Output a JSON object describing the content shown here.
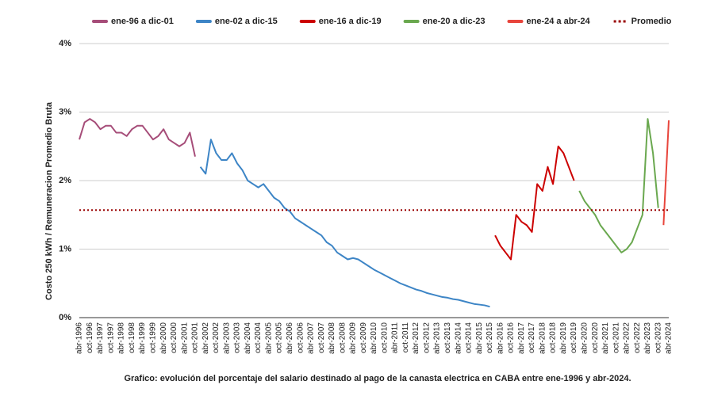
{
  "chart_data": {
    "type": "line",
    "y_label": "Costo 250 kWh / Remuneracion Promedio Bruta",
    "caption": "Grafico: evolución del porcentaje del salario destinado al pago de la canasta electrica en CABA entre ene-1996 y abr-2024.",
    "ylim": [
      0,
      4
    ],
    "yticks": [
      {
        "value": 0,
        "label": "0%"
      },
      {
        "value": 1,
        "label": "1%"
      },
      {
        "value": 2,
        "label": "2%"
      },
      {
        "value": 3,
        "label": "3%"
      },
      {
        "value": 4,
        "label": "4%"
      }
    ],
    "grid": true,
    "legend": "top",
    "categories": [
      "abr-1996",
      null,
      "oct-1996",
      null,
      "abr-1997",
      null,
      "oct-1997",
      null,
      "abr-1998",
      null,
      "oct-1998",
      null,
      "abr-1999",
      null,
      "oct-1999",
      null,
      "abr-2000",
      null,
      "oct-2000",
      null,
      "abr-2001",
      null,
      "oct-2001",
      null,
      "abr-2002",
      null,
      "oct-2002",
      null,
      "abr-2003",
      null,
      "oct-2003",
      null,
      "abr-2004",
      null,
      "oct-2004",
      null,
      "abr-2005",
      null,
      "oct-2005",
      null,
      "abr-2006",
      null,
      "oct-2006",
      null,
      "abr-2007",
      null,
      "oct-2007",
      null,
      "abr-2008",
      null,
      "oct-2008",
      null,
      "abr-2009",
      null,
      "oct-2009",
      null,
      "abr-2010",
      null,
      "oct-2010",
      null,
      "abr-2011",
      null,
      "oct-2011",
      null,
      "abr-2012",
      null,
      "oct-2012",
      null,
      "abr-2013",
      null,
      "oct-2013",
      null,
      "abr-2014",
      null,
      "oct-2014",
      null,
      "abr-2015",
      null,
      "oct-2015",
      null,
      "abr-2016",
      null,
      "oct-2016",
      null,
      "abr-2017",
      null,
      "oct-2017",
      null,
      "abr-2018",
      null,
      "oct-2018",
      null,
      "abr-2019",
      null,
      "oct-2019",
      null,
      "abr-2020",
      null,
      "oct-2020",
      null,
      "abr-2021",
      null,
      "oct-2021",
      null,
      "abr-2022",
      null,
      "oct-2022",
      null,
      "abr-2023",
      null,
      "oct-2023",
      null,
      "abr-2024"
    ],
    "series": [
      {
        "name": "ene-96 a dic-01",
        "color": "#a64d79",
        "values": [
          2.6,
          2.85,
          2.9,
          2.85,
          2.75,
          2.8,
          2.8,
          2.7,
          2.7,
          2.65,
          2.75,
          2.8,
          2.8,
          2.7,
          2.6,
          2.65,
          2.75,
          2.6,
          2.55,
          2.5,
          2.55,
          2.7,
          2.35,
          null,
          null,
          null,
          null,
          null,
          null,
          null,
          null,
          null,
          null,
          null,
          null,
          null,
          null,
          null,
          null,
          null,
          null,
          null,
          null,
          null,
          null,
          null,
          null,
          null,
          null,
          null,
          null,
          null,
          null,
          null,
          null,
          null,
          null,
          null,
          null,
          null,
          null,
          null,
          null,
          null,
          null,
          null,
          null,
          null,
          null,
          null,
          null,
          null,
          null,
          null,
          null,
          null,
          null,
          null,
          null,
          null,
          null,
          null,
          null,
          null,
          null,
          null,
          null,
          null,
          null,
          null,
          null,
          null,
          null,
          null,
          null,
          null,
          null,
          null,
          null,
          null,
          null,
          null,
          null,
          null,
          null,
          null,
          null,
          null,
          null,
          null,
          null,
          null,
          null
        ]
      },
      {
        "name": "ene-02 a dic-15",
        "color": "#3d85c6",
        "values": [
          null,
          null,
          null,
          null,
          null,
          null,
          null,
          null,
          null,
          null,
          null,
          null,
          null,
          null,
          null,
          null,
          null,
          null,
          null,
          null,
          null,
          null,
          null,
          2.2,
          2.1,
          2.6,
          2.4,
          2.3,
          2.3,
          2.4,
          2.25,
          2.15,
          2.0,
          1.95,
          1.9,
          1.95,
          1.85,
          1.75,
          1.7,
          1.6,
          1.55,
          1.45,
          1.4,
          1.35,
          1.3,
          1.25,
          1.2,
          1.1,
          1.05,
          0.95,
          0.9,
          0.85,
          0.87,
          0.85,
          0.8,
          0.75,
          0.7,
          0.66,
          0.62,
          0.58,
          0.54,
          0.5,
          0.47,
          0.44,
          0.41,
          0.39,
          0.36,
          0.34,
          0.32,
          0.3,
          0.29,
          0.27,
          0.26,
          0.24,
          0.22,
          0.2,
          0.19,
          0.18,
          0.16,
          null,
          null,
          null,
          null,
          null,
          null,
          null,
          null,
          null,
          null,
          null,
          null,
          null,
          null,
          null,
          null,
          null,
          null,
          null,
          null,
          null,
          null,
          null,
          null,
          null,
          null,
          null,
          null,
          null,
          null,
          null,
          null,
          null,
          null
        ]
      },
      {
        "name": "ene-16 a dic-19",
        "color": "#cc0000",
        "values": [
          null,
          null,
          null,
          null,
          null,
          null,
          null,
          null,
          null,
          null,
          null,
          null,
          null,
          null,
          null,
          null,
          null,
          null,
          null,
          null,
          null,
          null,
          null,
          null,
          null,
          null,
          null,
          null,
          null,
          null,
          null,
          null,
          null,
          null,
          null,
          null,
          null,
          null,
          null,
          null,
          null,
          null,
          null,
          null,
          null,
          null,
          null,
          null,
          null,
          null,
          null,
          null,
          null,
          null,
          null,
          null,
          null,
          null,
          null,
          null,
          null,
          null,
          null,
          null,
          null,
          null,
          null,
          null,
          null,
          null,
          null,
          null,
          null,
          null,
          null,
          null,
          null,
          null,
          null,
          1.2,
          1.05,
          0.95,
          0.85,
          1.5,
          1.4,
          1.35,
          1.25,
          1.95,
          1.85,
          2.2,
          1.95,
          2.5,
          2.4,
          2.2,
          2.0,
          null,
          null,
          null,
          null,
          null,
          null,
          null,
          null,
          null,
          null,
          null,
          null,
          null,
          null,
          null,
          null,
          null,
          null
        ]
      },
      {
        "name": "ene-20 a dic-23",
        "color": "#6aa84f",
        "values": [
          null,
          null,
          null,
          null,
          null,
          null,
          null,
          null,
          null,
          null,
          null,
          null,
          null,
          null,
          null,
          null,
          null,
          null,
          null,
          null,
          null,
          null,
          null,
          null,
          null,
          null,
          null,
          null,
          null,
          null,
          null,
          null,
          null,
          null,
          null,
          null,
          null,
          null,
          null,
          null,
          null,
          null,
          null,
          null,
          null,
          null,
          null,
          null,
          null,
          null,
          null,
          null,
          null,
          null,
          null,
          null,
          null,
          null,
          null,
          null,
          null,
          null,
          null,
          null,
          null,
          null,
          null,
          null,
          null,
          null,
          null,
          null,
          null,
          null,
          null,
          null,
          null,
          null,
          null,
          null,
          null,
          null,
          null,
          null,
          null,
          null,
          null,
          null,
          null,
          null,
          null,
          null,
          null,
          null,
          null,
          1.85,
          1.7,
          1.6,
          1.5,
          1.35,
          1.25,
          1.15,
          1.05,
          0.95,
          1.0,
          1.1,
          1.3,
          1.5,
          2.9,
          2.4,
          1.6,
          null,
          null
        ]
      },
      {
        "name": "ene-24 a abr-24",
        "color": "#e8453c",
        "values": [
          null,
          null,
          null,
          null,
          null,
          null,
          null,
          null,
          null,
          null,
          null,
          null,
          null,
          null,
          null,
          null,
          null,
          null,
          null,
          null,
          null,
          null,
          null,
          null,
          null,
          null,
          null,
          null,
          null,
          null,
          null,
          null,
          null,
          null,
          null,
          null,
          null,
          null,
          null,
          null,
          null,
          null,
          null,
          null,
          null,
          null,
          null,
          null,
          null,
          null,
          null,
          null,
          null,
          null,
          null,
          null,
          null,
          null,
          null,
          null,
          null,
          null,
          null,
          null,
          null,
          null,
          null,
          null,
          null,
          null,
          null,
          null,
          null,
          null,
          null,
          null,
          null,
          null,
          null,
          null,
          null,
          null,
          null,
          null,
          null,
          null,
          null,
          null,
          null,
          null,
          null,
          null,
          null,
          null,
          null,
          null,
          null,
          null,
          null,
          null,
          null,
          null,
          null,
          null,
          null,
          null,
          null,
          null,
          null,
          null,
          null,
          1.35,
          2.88
        ]
      }
    ],
    "average": {
      "name": "Promedio",
      "value": 1.57,
      "color": "#990000"
    }
  }
}
